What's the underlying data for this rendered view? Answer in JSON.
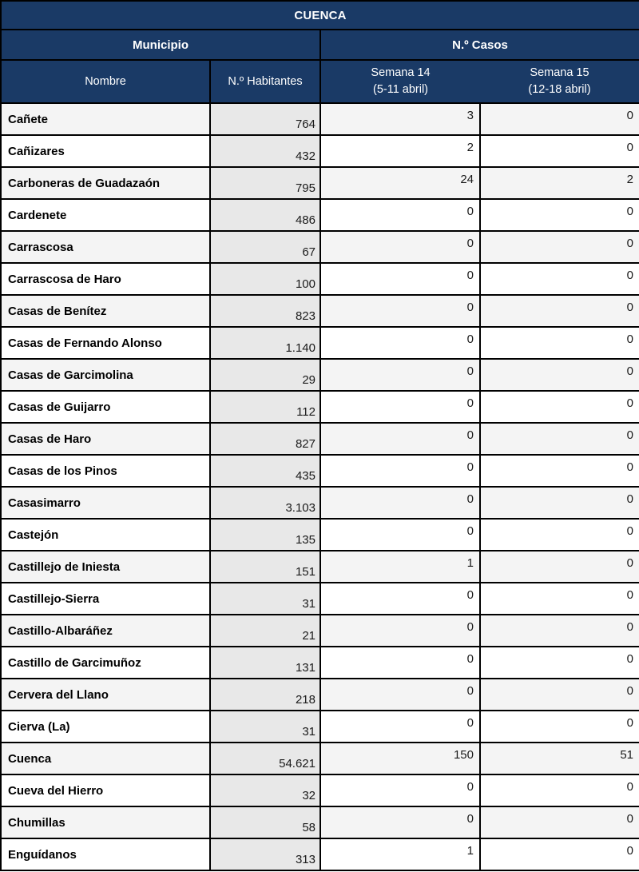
{
  "colors": {
    "header_navy": "#1a3a66",
    "grid_border": "#000000",
    "row_stripe": "#f4f4f4",
    "population_column_gray": "#e8e8e8"
  },
  "table": {
    "title": "CUENCA",
    "group_headers": {
      "municipio": "Municipio",
      "casos": "N.º Casos"
    },
    "column_headers": {
      "nombre": "Nombre",
      "habitantes": "N.º Habitantes",
      "semana14_line1": "Semana 14",
      "semana14_line2": "(5-11 abril)",
      "semana15_line1": "Semana 15",
      "semana15_line2": "(12-18 abril)"
    },
    "rows": [
      {
        "nombre": "Cañete",
        "habitantes": "764",
        "semana14": "3",
        "semana15": "0"
      },
      {
        "nombre": "Cañizares",
        "habitantes": "432",
        "semana14": "2",
        "semana15": "0"
      },
      {
        "nombre": "Carboneras de Guadazaón",
        "habitantes": "795",
        "semana14": "24",
        "semana15": "2"
      },
      {
        "nombre": "Cardenete",
        "habitantes": "486",
        "semana14": "0",
        "semana15": "0"
      },
      {
        "nombre": "Carrascosa",
        "habitantes": "67",
        "semana14": "0",
        "semana15": "0"
      },
      {
        "nombre": "Carrascosa de Haro",
        "habitantes": "100",
        "semana14": "0",
        "semana15": "0"
      },
      {
        "nombre": "Casas de Benítez",
        "habitantes": "823",
        "semana14": "0",
        "semana15": "0"
      },
      {
        "nombre": "Casas de Fernando Alonso",
        "habitantes": "1.140",
        "semana14": "0",
        "semana15": "0"
      },
      {
        "nombre": "Casas de Garcimolina",
        "habitantes": "29",
        "semana14": "0",
        "semana15": "0"
      },
      {
        "nombre": "Casas de Guijarro",
        "habitantes": "112",
        "semana14": "0",
        "semana15": "0"
      },
      {
        "nombre": "Casas de Haro",
        "habitantes": "827",
        "semana14": "0",
        "semana15": "0"
      },
      {
        "nombre": "Casas de los Pinos",
        "habitantes": "435",
        "semana14": "0",
        "semana15": "0"
      },
      {
        "nombre": "Casasimarro",
        "habitantes": "3.103",
        "semana14": "0",
        "semana15": "0"
      },
      {
        "nombre": "Castejón",
        "habitantes": "135",
        "semana14": "0",
        "semana15": "0"
      },
      {
        "nombre": "Castillejo de Iniesta",
        "habitantes": "151",
        "semana14": "1",
        "semana15": "0"
      },
      {
        "nombre": "Castillejo-Sierra",
        "habitantes": "31",
        "semana14": "0",
        "semana15": "0"
      },
      {
        "nombre": "Castillo-Albaráñez",
        "habitantes": "21",
        "semana14": "0",
        "semana15": "0"
      },
      {
        "nombre": "Castillo de Garcimuñoz",
        "habitantes": "131",
        "semana14": "0",
        "semana15": "0"
      },
      {
        "nombre": "Cervera del Llano",
        "habitantes": "218",
        "semana14": "0",
        "semana15": "0"
      },
      {
        "nombre": "Cierva (La)",
        "habitantes": "31",
        "semana14": "0",
        "semana15": "0"
      },
      {
        "nombre": "Cuenca",
        "habitantes": "54.621",
        "semana14": "150",
        "semana15": "51"
      },
      {
        "nombre": "Cueva del Hierro",
        "habitantes": "32",
        "semana14": "0",
        "semana15": "0"
      },
      {
        "nombre": "Chumillas",
        "habitantes": "58",
        "semana14": "0",
        "semana15": "0"
      },
      {
        "nombre": "Enguídanos",
        "habitantes": "313",
        "semana14": "1",
        "semana15": "0"
      }
    ]
  }
}
